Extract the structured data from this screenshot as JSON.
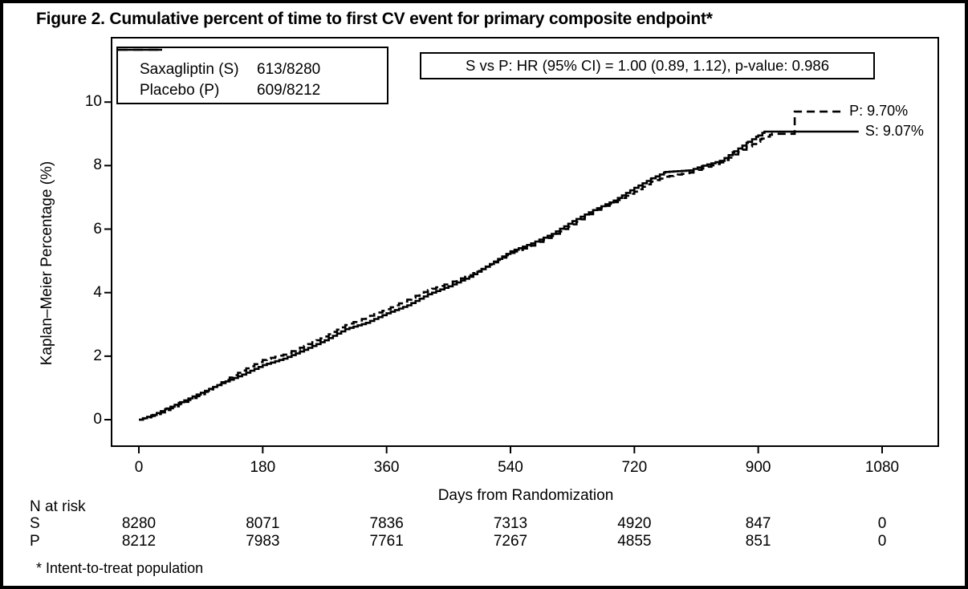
{
  "figure": {
    "title": "Figure 2. Cumulative percent of time to first CV event for primary composite endpoint*",
    "footnote": "* Intent-to-treat population",
    "colors": {
      "foreground": "#000000",
      "background": "#ffffff"
    }
  },
  "chart_data": {
    "type": "line",
    "subtype": "kaplan-meier-step",
    "title": "Figure 2. Cumulative percent of time to first CV event for primary composite endpoint*",
    "xlabel": "Days from Randomization",
    "ylabel": "Kaplan–Meier Percentage (%)",
    "xlim": [
      0,
      1080
    ],
    "ylim": [
      0,
      10
    ],
    "x_ticks": [
      0,
      180,
      360,
      540,
      720,
      900,
      1080
    ],
    "y_ticks": [
      0,
      2,
      4,
      6,
      8,
      10
    ],
    "grid": false,
    "legend_position": "top-left",
    "annotation": "S vs P: HR (95% CI) = 1.00 (0.89, 1.12), p-value: 0.986",
    "series": [
      {
        "name": "Saxagliptin (S)",
        "short": "S",
        "events": "613/8280",
        "line": "solid",
        "final_pct": 9.07,
        "end_label": "S: 9.07%",
        "flat_end_day": 1046,
        "points": [
          [
            0,
            0
          ],
          [
            20,
            0.15
          ],
          [
            40,
            0.35
          ],
          [
            60,
            0.55
          ],
          [
            90,
            0.85
          ],
          [
            120,
            1.15
          ],
          [
            150,
            1.42
          ],
          [
            180,
            1.72
          ],
          [
            210,
            1.92
          ],
          [
            240,
            2.2
          ],
          [
            270,
            2.5
          ],
          [
            300,
            2.85
          ],
          [
            330,
            3.05
          ],
          [
            360,
            3.35
          ],
          [
            390,
            3.6
          ],
          [
            420,
            3.95
          ],
          [
            450,
            4.2
          ],
          [
            480,
            4.5
          ],
          [
            510,
            4.9
          ],
          [
            540,
            5.3
          ],
          [
            570,
            5.55
          ],
          [
            600,
            5.85
          ],
          [
            630,
            6.25
          ],
          [
            660,
            6.6
          ],
          [
            690,
            6.9
          ],
          [
            720,
            7.3
          ],
          [
            745,
            7.6
          ],
          [
            765,
            7.8
          ],
          [
            800,
            7.85
          ],
          [
            820,
            8.0
          ],
          [
            845,
            8.15
          ],
          [
            865,
            8.45
          ],
          [
            885,
            8.75
          ],
          [
            900,
            8.95
          ],
          [
            909,
            9.07
          ],
          [
            1046,
            9.07
          ]
        ]
      },
      {
        "name": "Placebo (P)",
        "short": "P",
        "events": "609/8212",
        "line": "dashed",
        "final_pct": 9.7,
        "end_label": "P: 9.70%",
        "flat_end_day": 1023,
        "points": [
          [
            0,
            0
          ],
          [
            20,
            0.12
          ],
          [
            40,
            0.3
          ],
          [
            60,
            0.5
          ],
          [
            90,
            0.8
          ],
          [
            120,
            1.18
          ],
          [
            150,
            1.55
          ],
          [
            180,
            1.88
          ],
          [
            210,
            2.05
          ],
          [
            240,
            2.32
          ],
          [
            270,
            2.62
          ],
          [
            300,
            2.98
          ],
          [
            330,
            3.22
          ],
          [
            360,
            3.48
          ],
          [
            390,
            3.78
          ],
          [
            420,
            4.08
          ],
          [
            450,
            4.3
          ],
          [
            480,
            4.55
          ],
          [
            510,
            4.88
          ],
          [
            540,
            5.25
          ],
          [
            570,
            5.48
          ],
          [
            600,
            5.78
          ],
          [
            630,
            6.15
          ],
          [
            660,
            6.55
          ],
          [
            690,
            6.85
          ],
          [
            720,
            7.18
          ],
          [
            745,
            7.5
          ],
          [
            765,
            7.65
          ],
          [
            800,
            7.78
          ],
          [
            820,
            7.92
          ],
          [
            845,
            8.1
          ],
          [
            865,
            8.35
          ],
          [
            885,
            8.6
          ],
          [
            905,
            8.85
          ],
          [
            920,
            9.0
          ],
          [
            953,
            9.0
          ],
          [
            953,
            9.7
          ],
          [
            1023,
            9.7
          ]
        ]
      }
    ],
    "n_at_risk": {
      "label": "N at risk",
      "days": [
        0,
        180,
        360,
        540,
        720,
        900,
        1080
      ],
      "rows": [
        {
          "label": "S",
          "values": [
            8280,
            8071,
            7836,
            7313,
            4920,
            847,
            0
          ]
        },
        {
          "label": "P",
          "values": [
            8212,
            7983,
            7761,
            7267,
            4855,
            851,
            0
          ]
        }
      ]
    }
  }
}
